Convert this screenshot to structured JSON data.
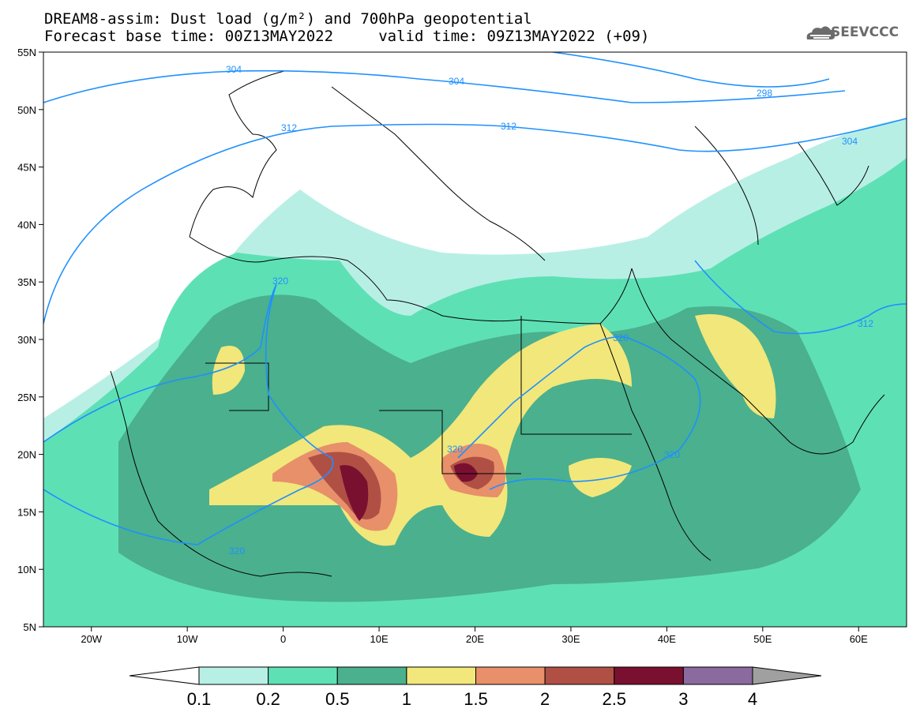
{
  "title": {
    "line1": "DREAM8-assim: Dust load (g/m²) and 700hPa geopotential",
    "line2": "Forecast base time: 00Z13MAY2022     valid time: 09Z13MAY2022 (+09)"
  },
  "logo": {
    "text": "SEEVCCC",
    "icon": "cloud-icon"
  },
  "map": {
    "lon_range": [
      -25,
      65
    ],
    "lat_range": [
      5,
      55
    ],
    "lat_labels": [
      "55N",
      "50N",
      "45N",
      "40N",
      "35N",
      "30N",
      "25N",
      "20N",
      "15N",
      "10N",
      "5N"
    ],
    "lon_labels": [
      "20W",
      "10W",
      "0",
      "10E",
      "20E",
      "30E",
      "40E",
      "50E",
      "60E"
    ],
    "contour_labels": [
      "304",
      "304",
      "298",
      "312",
      "312",
      "304",
      "320",
      "312",
      "320",
      "320",
      "320",
      "320"
    ]
  },
  "colorbar": {
    "labels": [
      "0.1",
      "0.2",
      "0.5",
      "1",
      "1.5",
      "2",
      "2.5",
      "3",
      "4"
    ],
    "colors": [
      "#b8efe5",
      "#5ee0b5",
      "#4bb08d",
      "#f2e77a",
      "#e8906a",
      "#b05045",
      "#7a1030",
      "#8a6a9f",
      "#a0a0a0"
    ]
  },
  "colors": {
    "contour": "#1e90ff",
    "border": "#000000"
  }
}
